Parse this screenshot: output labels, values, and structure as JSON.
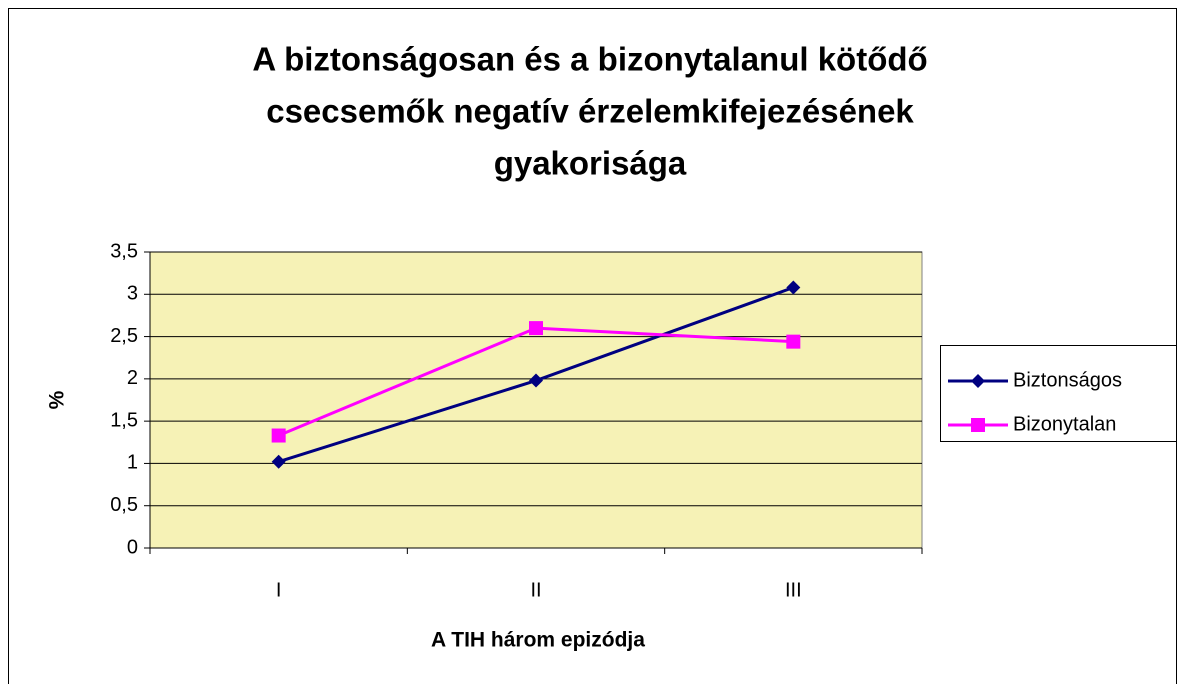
{
  "chart_data": {
    "type": "line",
    "title": [
      "A biztonságosan és a bizonytalanul kötődő",
      "csecsemők negatív érzelemkifejezésének",
      "gyakorisága"
    ],
    "x_label": "A TIH három epizódja",
    "y_label": "%",
    "categories": [
      "I",
      "II",
      "III"
    ],
    "series": [
      {
        "name": "Biztonságos",
        "color": "#000080",
        "marker": "diamond",
        "values": [
          1.02,
          1.98,
          3.08
        ]
      },
      {
        "name": "Bizonytalan",
        "color": "#ff00ff",
        "marker": "square",
        "values": [
          1.33,
          2.6,
          2.44
        ]
      }
    ],
    "ylim": [
      0,
      3.5
    ],
    "yticks": [
      0,
      {
        "value": 0.5,
        "label": "0,5"
      },
      1,
      {
        "value": 1.5,
        "label": "1,5"
      },
      2,
      {
        "value": 2.5,
        "label": "2,5"
      },
      3,
      {
        "value": 3.5,
        "label": "3,5"
      }
    ],
    "grid": true,
    "legend": "right",
    "plot_background": "#f6f2b6"
  }
}
